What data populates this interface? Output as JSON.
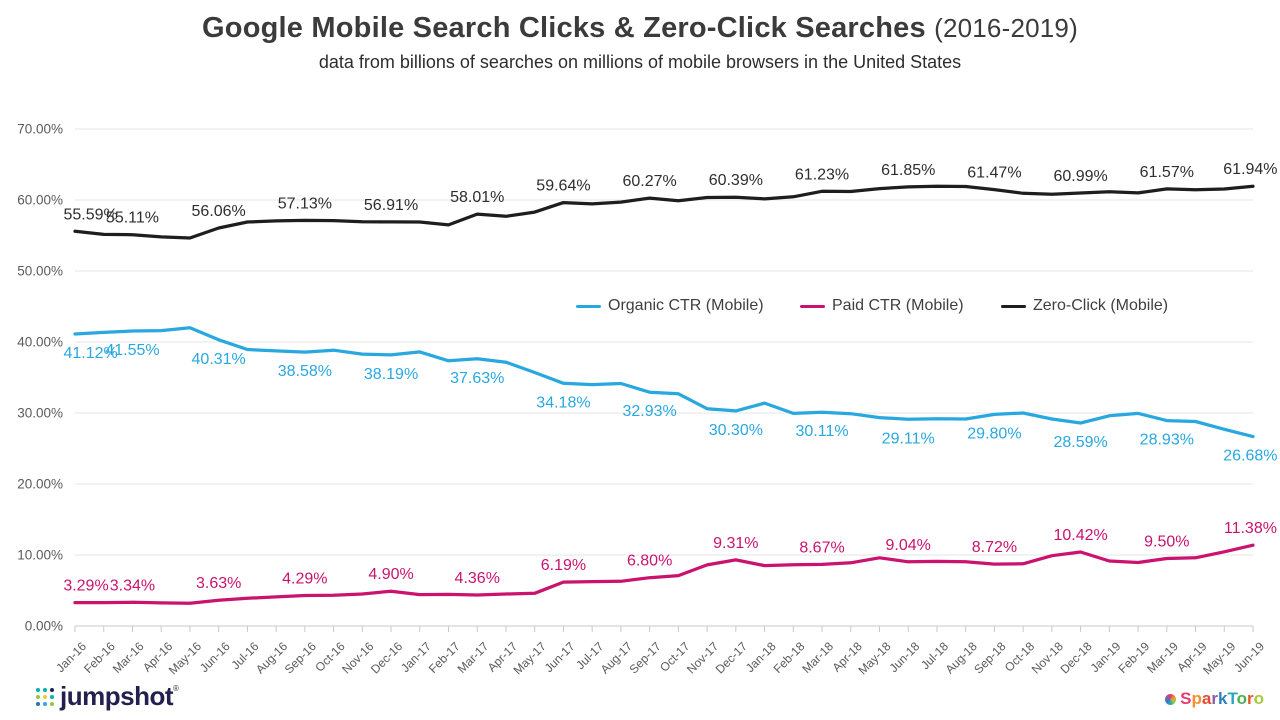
{
  "header": {
    "title": "Google Mobile Search Clicks & Zero-Click Searches",
    "period": "(2016-2019)",
    "subtitle": "data from billions of searches on millions of mobile browsers in the United States"
  },
  "legend": [
    {
      "id": "organic",
      "label": "Organic CTR (Mobile)",
      "color": "#29a8df"
    },
    {
      "id": "paid",
      "label": "Paid CTR (Mobile)",
      "color": "#c9136f"
    },
    {
      "id": "zeroclick",
      "label": "Zero-Click (Mobile)",
      "color": "#1e1e1e"
    }
  ],
  "y_axis": {
    "min": 0,
    "max": 70,
    "tick_step": 10,
    "ticks": [
      "70.00%",
      "60.00%",
      "50.00%",
      "40.00%",
      "30.00%",
      "20.00%",
      "10.00%",
      "0.00%"
    ]
  },
  "chart_data": {
    "type": "line",
    "title": "Google Mobile Search Clicks & Zero-Click Searches (2016-2019)",
    "xlabel": "",
    "ylabel": "",
    "ylim": [
      0,
      70
    ],
    "grid": true,
    "legend_position": "center-right",
    "x": [
      "Jan-16",
      "Feb-16",
      "Mar-16",
      "Apr-16",
      "May-16",
      "Jun-16",
      "Jul-16",
      "Aug-16",
      "Sep-16",
      "Oct-16",
      "Nov-16",
      "Dec-16",
      "Jan-17",
      "Feb-17",
      "Mar-17",
      "Apr-17",
      "May-17",
      "Jun-17",
      "Jul-17",
      "Aug-17",
      "Sep-17",
      "Oct-17",
      "Nov-17",
      "Dec-17",
      "Jan-18",
      "Feb-18",
      "Mar-18",
      "Apr-18",
      "May-18",
      "Jun-18",
      "Jul-18",
      "Aug-18",
      "Sep-18",
      "Oct-18",
      "Nov-18",
      "Dec-18",
      "Jan-19",
      "Feb-19",
      "Mar-19",
      "Apr-19",
      "May-19",
      "Jun-19"
    ],
    "series": [
      {
        "id": "organic",
        "name": "Organic CTR (Mobile)",
        "color": "#29a8df",
        "label_color": "#29a8df",
        "label_position": "below",
        "values": [
          41.12,
          41.35,
          41.55,
          41.6,
          42.0,
          40.31,
          38.95,
          38.75,
          38.58,
          38.85,
          38.3,
          38.19,
          38.6,
          37.35,
          37.63,
          37.15,
          35.7,
          34.18,
          34.0,
          34.15,
          32.93,
          32.7,
          30.6,
          30.3,
          31.4,
          29.95,
          30.11,
          29.9,
          29.35,
          29.11,
          29.2,
          29.15,
          29.8,
          30.0,
          29.15,
          28.59,
          29.6,
          29.95,
          28.93,
          28.8,
          27.7,
          26.68
        ],
        "point_labels": [
          {
            "i": 0,
            "t": "41.12%"
          },
          {
            "i": 2,
            "t": "41.55%"
          },
          {
            "i": 5,
            "t": "40.31%"
          },
          {
            "i": 8,
            "t": "38.58%"
          },
          {
            "i": 11,
            "t": "38.19%"
          },
          {
            "i": 14,
            "t": "37.63%"
          },
          {
            "i": 17,
            "t": "34.18%"
          },
          {
            "i": 20,
            "t": "32.93%"
          },
          {
            "i": 23,
            "t": "30.30%"
          },
          {
            "i": 26,
            "t": "30.11%"
          },
          {
            "i": 29,
            "t": "29.11%"
          },
          {
            "i": 32,
            "t": "29.80%"
          },
          {
            "i": 35,
            "t": "28.59%"
          },
          {
            "i": 38,
            "t": "28.93%"
          },
          {
            "i": 41,
            "t": "26.68%"
          }
        ]
      },
      {
        "id": "paid",
        "name": "Paid CTR (Mobile)",
        "color": "#c9136f",
        "label_color": "#c9136f",
        "label_position": "above",
        "values": [
          3.29,
          3.3,
          3.34,
          3.25,
          3.2,
          3.63,
          3.9,
          4.1,
          4.29,
          4.32,
          4.5,
          4.9,
          4.42,
          4.45,
          4.36,
          4.5,
          4.6,
          6.19,
          6.25,
          6.3,
          6.8,
          7.1,
          8.6,
          9.31,
          8.5,
          8.62,
          8.67,
          8.9,
          9.6,
          9.04,
          9.1,
          9.05,
          8.72,
          8.76,
          9.9,
          10.42,
          9.15,
          8.95,
          9.5,
          9.6,
          10.45,
          11.38
        ],
        "point_labels": [
          {
            "i": 0,
            "t": "3.29%"
          },
          {
            "i": 2,
            "t": "3.34%"
          },
          {
            "i": 5,
            "t": "3.63%"
          },
          {
            "i": 8,
            "t": "4.29%"
          },
          {
            "i": 11,
            "t": "4.90%"
          },
          {
            "i": 14,
            "t": "4.36%"
          },
          {
            "i": 17,
            "t": "6.19%"
          },
          {
            "i": 20,
            "t": "6.80%"
          },
          {
            "i": 23,
            "t": "9.31%"
          },
          {
            "i": 26,
            "t": "8.67%"
          },
          {
            "i": 29,
            "t": "9.04%"
          },
          {
            "i": 32,
            "t": "8.72%"
          },
          {
            "i": 35,
            "t": "10.42%"
          },
          {
            "i": 38,
            "t": "9.50%"
          },
          {
            "i": 41,
            "t": "11.38%"
          }
        ]
      },
      {
        "id": "zeroclick",
        "name": "Zero-Click (Mobile)",
        "color": "#1e1e1e",
        "label_color": "#2e2e2e",
        "label_position": "above",
        "values": [
          55.59,
          55.15,
          55.11,
          54.8,
          54.65,
          56.06,
          56.9,
          57.05,
          57.13,
          57.1,
          56.95,
          56.91,
          56.9,
          56.5,
          58.01,
          57.7,
          58.3,
          59.64,
          59.45,
          59.7,
          60.27,
          59.9,
          60.35,
          60.39,
          60.15,
          60.45,
          61.23,
          61.2,
          61.6,
          61.85,
          61.95,
          61.9,
          61.47,
          60.95,
          60.8,
          60.99,
          61.15,
          61.0,
          61.57,
          61.45,
          61.55,
          61.94
        ],
        "point_labels": [
          {
            "i": 0,
            "t": "55.59%"
          },
          {
            "i": 2,
            "t": "55.11%"
          },
          {
            "i": 5,
            "t": "56.06%"
          },
          {
            "i": 8,
            "t": "57.13%"
          },
          {
            "i": 11,
            "t": "56.91%"
          },
          {
            "i": 14,
            "t": "58.01%"
          },
          {
            "i": 17,
            "t": "59.64%"
          },
          {
            "i": 20,
            "t": "60.27%"
          },
          {
            "i": 23,
            "t": "60.39%"
          },
          {
            "i": 26,
            "t": "61.23%"
          },
          {
            "i": 29,
            "t": "61.85%"
          },
          {
            "i": 32,
            "t": "61.47%"
          },
          {
            "i": 35,
            "t": "60.99%"
          },
          {
            "i": 38,
            "t": "61.57%"
          },
          {
            "i": 41,
            "t": "61.94%"
          }
        ]
      }
    ]
  },
  "footer": {
    "jumpshot": {
      "text": "jumpshot",
      "reg_mark": "®",
      "color": "#23204f",
      "icon_dot_colors": [
        "#00b3a4",
        "#00b3a4",
        "#23204f",
        "#92c83e",
        "#f2ca30",
        "#00b3a4",
        "#2f6db5",
        "#35a8e0",
        "#92c83e"
      ]
    },
    "sparktoro": {
      "letters": [
        {
          "t": "S",
          "c": "#e63c6f"
        },
        {
          "t": "p",
          "c": "#f1912f"
        },
        {
          "t": "a",
          "c": "#e04b31"
        },
        {
          "t": "r",
          "c": "#8e5aa8"
        },
        {
          "t": "k",
          "c": "#2e7fc1"
        },
        {
          "t": "T",
          "c": "#2aa7c0"
        },
        {
          "t": "o",
          "c": "#4caf50"
        },
        {
          "t": "r",
          "c": "#e4572e"
        },
        {
          "t": "o",
          "c": "#a8c93a"
        }
      ]
    }
  }
}
